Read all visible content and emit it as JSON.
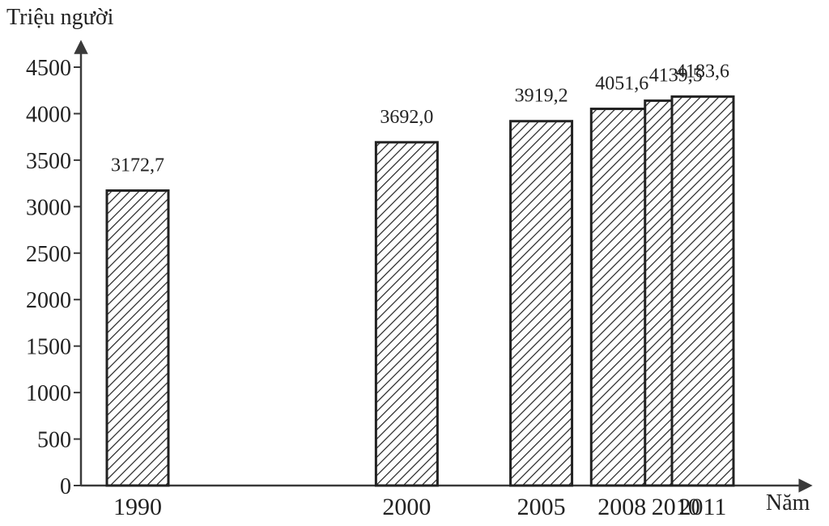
{
  "chart_data": {
    "type": "bar",
    "title": "",
    "ylabel": "Triệu người",
    "xlabel": "Năm",
    "categories": [
      "1990",
      "2000",
      "2005",
      "2008",
      "2010",
      "2011"
    ],
    "values": [
      3172.7,
      3692.0,
      3919.2,
      4051.6,
      4139.5,
      4183.6
    ],
    "value_labels": [
      "3172,7",
      "3692,0",
      "3919,2",
      "4051,6",
      "4139,5",
      "4183,6"
    ],
    "yticks": [
      0,
      500,
      1000,
      1500,
      2000,
      2500,
      3000,
      3500,
      4000,
      4500
    ],
    "ylim": [
      0,
      4500
    ],
    "x_scale": "time-proportional",
    "bar_fill": "diagonal-hatch",
    "grid": false,
    "colors": {
      "axis": "#3a3a3a",
      "bar_stroke": "#222222",
      "hatch": "#222222",
      "background": "#ffffff"
    }
  }
}
